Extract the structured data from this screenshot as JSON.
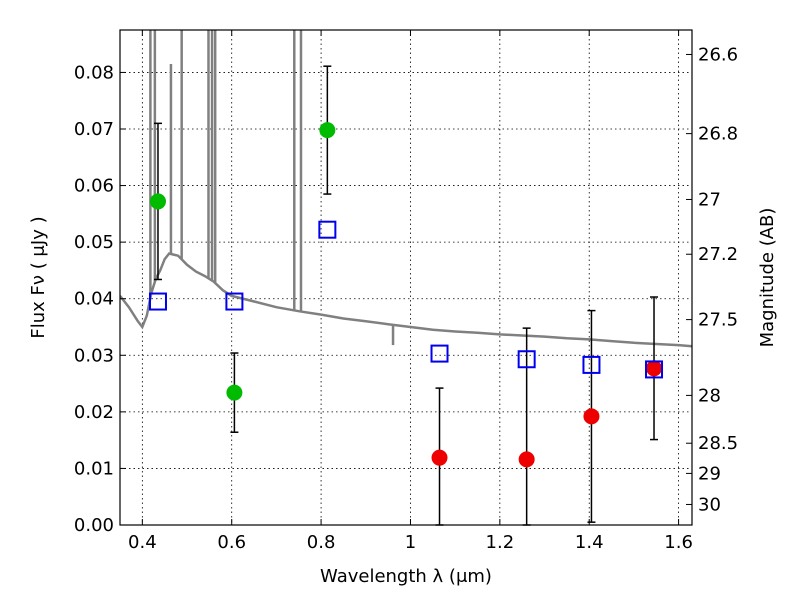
{
  "chart_data": {
    "type": "scatter",
    "xlabel": "Wavelength  λ (μm)",
    "ylabel": "Flux  Fν  ( μJy )",
    "ylabel_right": "Magnitude (AB)",
    "xlim": [
      0.35,
      1.63
    ],
    "ylim": [
      0.0,
      0.0875
    ],
    "grid": true,
    "x_ticks": [
      {
        "value": 0.4,
        "label": "0.4"
      },
      {
        "value": 0.6,
        "label": "0.6"
      },
      {
        "value": 0.8,
        "label": "0.8"
      },
      {
        "value": 1.0,
        "label": "1"
      },
      {
        "value": 1.2,
        "label": "1.2"
      },
      {
        "value": 1.4,
        "label": "1.4"
      },
      {
        "value": 1.6,
        "label": "1.6"
      }
    ],
    "y_ticks": [
      {
        "value": 0.0,
        "label": "0.00"
      },
      {
        "value": 0.01,
        "label": "0.01"
      },
      {
        "value": 0.02,
        "label": "0.02"
      },
      {
        "value": 0.03,
        "label": "0.03"
      },
      {
        "value": 0.04,
        "label": "0.04"
      },
      {
        "value": 0.05,
        "label": "0.05"
      },
      {
        "value": 0.06,
        "label": "0.06"
      },
      {
        "value": 0.07,
        "label": "0.07"
      },
      {
        "value": 0.08,
        "label": "0.08"
      }
    ],
    "right_ticks": [
      {
        "mag": 26.6,
        "label": "26.6"
      },
      {
        "mag": 26.8,
        "label": "26.8"
      },
      {
        "mag": 27.0,
        "label": "27"
      },
      {
        "mag": 27.2,
        "label": "27.2"
      },
      {
        "mag": 27.5,
        "label": "27.5"
      },
      {
        "mag": 28.0,
        "label": "28"
      },
      {
        "mag": 28.5,
        "label": "28.5"
      },
      {
        "mag": 29.0,
        "label": "29"
      },
      {
        "mag": 30.0,
        "label": "30"
      }
    ],
    "series": [
      {
        "color": "#00bb00",
        "marker": "circle",
        "points": [
          {
            "x": 0.435,
            "y": 0.0572,
            "err": 0.0138
          },
          {
            "x": 0.606,
            "y": 0.0234,
            "err": 0.007
          },
          {
            "x": 0.814,
            "y": 0.0698,
            "err": 0.0113
          }
        ]
      },
      {
        "color": "#ee0000",
        "marker": "circle",
        "points": [
          {
            "x": 1.065,
            "y": 0.0119,
            "err": 0.0123
          },
          {
            "x": 1.26,
            "y": 0.0116,
            "err": 0.0232
          },
          {
            "x": 1.405,
            "y": 0.0192,
            "err": 0.0187
          },
          {
            "x": 1.545,
            "y": 0.0277,
            "err": 0.0126
          }
        ]
      },
      {
        "color": "#0000ee",
        "marker": "square",
        "points": [
          {
            "x": 0.435,
            "y": 0.0395
          },
          {
            "x": 0.606,
            "y": 0.0395
          },
          {
            "x": 0.814,
            "y": 0.0522
          },
          {
            "x": 1.065,
            "y": 0.0303
          },
          {
            "x": 1.26,
            "y": 0.0293
          },
          {
            "x": 1.405,
            "y": 0.0283
          },
          {
            "x": 1.545,
            "y": 0.0275
          }
        ]
      }
    ],
    "spectrum": {
      "color": "#808080",
      "points": [
        [
          0.35,
          0.0405
        ],
        [
          0.37,
          0.0385
        ],
        [
          0.39,
          0.036
        ],
        [
          0.4,
          0.035
        ],
        [
          0.41,
          0.037
        ],
        [
          0.42,
          0.041
        ],
        [
          0.43,
          0.0435
        ],
        [
          0.44,
          0.045
        ],
        [
          0.45,
          0.047
        ],
        [
          0.46,
          0.048
        ],
        [
          0.47,
          0.0478
        ],
        [
          0.48,
          0.0476
        ],
        [
          0.49,
          0.0468
        ],
        [
          0.5,
          0.046
        ],
        [
          0.52,
          0.0448
        ],
        [
          0.54,
          0.044
        ],
        [
          0.56,
          0.043
        ],
        [
          0.58,
          0.0415
        ],
        [
          0.6,
          0.0405
        ],
        [
          0.65,
          0.0395
        ],
        [
          0.7,
          0.0385
        ],
        [
          0.75,
          0.0378
        ],
        [
          0.8,
          0.0372
        ],
        [
          0.85,
          0.0365
        ],
        [
          0.9,
          0.036
        ],
        [
          0.95,
          0.0355
        ],
        [
          1.0,
          0.035
        ],
        [
          1.05,
          0.0345
        ],
        [
          1.1,
          0.0342
        ],
        [
          1.15,
          0.034
        ],
        [
          1.2,
          0.0337
        ],
        [
          1.25,
          0.0335
        ],
        [
          1.3,
          0.0333
        ],
        [
          1.35,
          0.033
        ],
        [
          1.4,
          0.0328
        ],
        [
          1.45,
          0.0325
        ],
        [
          1.5,
          0.0322
        ],
        [
          1.55,
          0.032
        ],
        [
          1.6,
          0.0318
        ],
        [
          1.63,
          0.0316
        ]
      ],
      "lines": [
        {
          "x": 0.418,
          "y": 0.12
        },
        {
          "x": 0.428,
          "y": 0.12
        },
        {
          "x": 0.464,
          "y": 0.0815
        },
        {
          "x": 0.488,
          "y": 0.12
        },
        {
          "x": 0.548,
          "y": 0.12
        },
        {
          "x": 0.556,
          "y": 0.12
        },
        {
          "x": 0.563,
          "y": 0.12
        },
        {
          "x": 0.74,
          "y": 0.12
        },
        {
          "x": 0.755,
          "y": 0.12
        },
        {
          "x": 0.961,
          "y": 0.0318
        }
      ]
    }
  }
}
